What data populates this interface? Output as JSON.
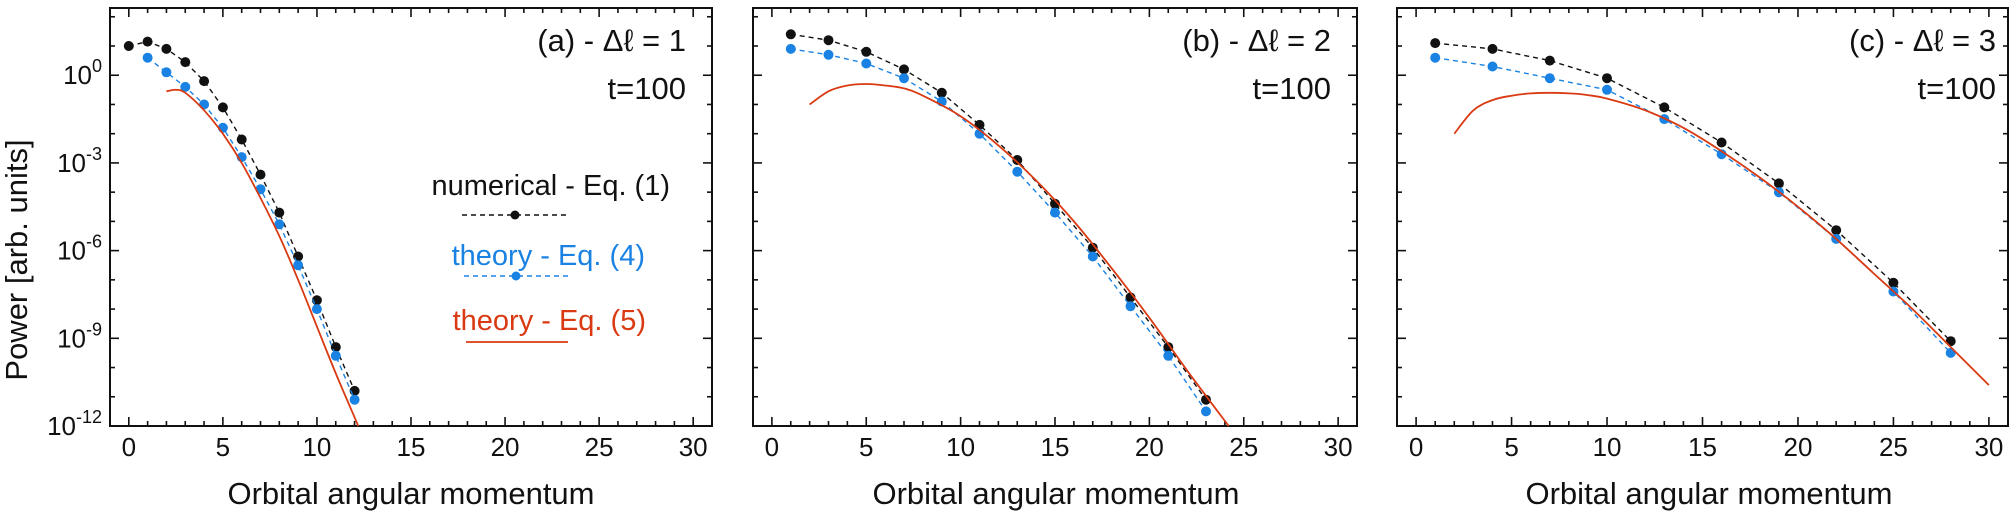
{
  "colors": {
    "numerical": "#111111",
    "theory_eq4": "#1a82e2",
    "theory_eq5": "#d93a12",
    "axis": "#111111"
  },
  "figure": {
    "ylabel": "Power [arb. units]"
  },
  "legend": {
    "numerical": "numerical - Eq. (1)",
    "theory_eq4": "theory - Eq. (4)",
    "theory_eq5": "theory - Eq. (5)"
  },
  "chart_data": [
    {
      "type": "line",
      "id": "a",
      "title": "(a) - Δℓ = 1",
      "annotation": "t=100",
      "xlabel": "Orbital angular momentum",
      "ylabel": "Power [arb. units]",
      "xlim": [
        -1,
        31
      ],
      "ylim_log10": [
        -12,
        2.3
      ],
      "yscale": "log",
      "xticks": [
        0,
        5,
        10,
        15,
        20,
        25,
        30
      ],
      "yticks_exponent": [
        0,
        -3,
        -6,
        -9,
        -12
      ],
      "series": [
        {
          "name": "numerical - Eq. (1)",
          "style": "dashed-markers",
          "x": [
            0,
            1,
            2,
            3,
            4,
            5,
            6,
            7,
            8,
            9,
            10,
            11,
            12
          ],
          "log10_y": [
            1.0,
            1.15,
            0.9,
            0.45,
            -0.2,
            -1.1,
            -2.2,
            -3.4,
            -4.7,
            -6.2,
            -7.7,
            -9.3,
            -10.8
          ]
        },
        {
          "name": "theory - Eq. (4)",
          "style": "dashed-markers",
          "x": [
            1,
            2,
            3,
            4,
            5,
            6,
            7,
            8,
            9,
            10,
            11,
            12
          ],
          "log10_y": [
            0.6,
            0.1,
            -0.4,
            -1.0,
            -1.8,
            -2.8,
            -3.9,
            -5.1,
            -6.5,
            -8.0,
            -9.6,
            -11.1
          ]
        },
        {
          "name": "theory - Eq. (5)",
          "style": "solid",
          "x": [
            2,
            2.5,
            3,
            4,
            5,
            6,
            7,
            8,
            9,
            10,
            11,
            12.2
          ],
          "log10_y": [
            -0.55,
            -0.5,
            -0.6,
            -1.2,
            -2.0,
            -3.0,
            -4.2,
            -5.5,
            -7.0,
            -8.6,
            -10.2,
            -12.0
          ]
        }
      ]
    },
    {
      "type": "line",
      "id": "b",
      "title": "(b) - Δℓ = 2",
      "annotation": "t=100",
      "xlabel": "Orbital angular momentum",
      "ylabel": "",
      "xlim": [
        -1,
        31
      ],
      "ylim_log10": [
        -12,
        2.3
      ],
      "yscale": "log",
      "xticks": [
        0,
        5,
        10,
        15,
        20,
        25,
        30
      ],
      "yticks_exponent": [
        0,
        -3,
        -6,
        -9,
        -12
      ],
      "series": [
        {
          "name": "numerical - Eq. (1)",
          "style": "dashed-markers",
          "x": [
            1,
            3,
            5,
            7,
            9,
            11,
            13,
            15,
            17,
            19,
            21,
            23
          ],
          "log10_y": [
            1.4,
            1.2,
            0.8,
            0.2,
            -0.6,
            -1.7,
            -2.9,
            -4.4,
            -5.9,
            -7.6,
            -9.3,
            -11.1
          ]
        },
        {
          "name": "theory - Eq. (4)",
          "style": "dashed-markers",
          "x": [
            1,
            3,
            5,
            7,
            9,
            11,
            13,
            15,
            17,
            19,
            21,
            23
          ],
          "log10_y": [
            0.9,
            0.7,
            0.4,
            -0.1,
            -0.9,
            -2.0,
            -3.3,
            -4.7,
            -6.2,
            -7.9,
            -9.6,
            -11.5
          ]
        },
        {
          "name": "theory - Eq. (5)",
          "style": "solid",
          "x": [
            2,
            3,
            4,
            5,
            6,
            7,
            8,
            10,
            12,
            14,
            16,
            18,
            20,
            22,
            24.2
          ],
          "log10_y": [
            -1.0,
            -0.55,
            -0.35,
            -0.3,
            -0.35,
            -0.45,
            -0.7,
            -1.4,
            -2.4,
            -3.6,
            -5.0,
            -6.6,
            -8.3,
            -10.1,
            -12.0
          ]
        }
      ]
    },
    {
      "type": "line",
      "id": "c",
      "title": "(c) - Δℓ = 3",
      "annotation": "t=100",
      "xlabel": "Orbital angular momentum",
      "ylabel": "",
      "xlim": [
        -1,
        31
      ],
      "ylim_log10": [
        -12,
        2.3
      ],
      "yscale": "log",
      "xticks": [
        0,
        5,
        10,
        15,
        20,
        25,
        30
      ],
      "yticks_exponent": [
        0,
        -3,
        -6,
        -9,
        -12
      ],
      "series": [
        {
          "name": "numerical - Eq. (1)",
          "style": "dashed-markers",
          "x": [
            1,
            4,
            7,
            10,
            13,
            16,
            19,
            22,
            25,
            28
          ],
          "log10_y": [
            1.1,
            0.9,
            0.5,
            -0.1,
            -1.1,
            -2.3,
            -3.7,
            -5.3,
            -7.1,
            -9.1
          ]
        },
        {
          "name": "theory - Eq. (4)",
          "style": "dashed-markers",
          "x": [
            1,
            4,
            7,
            10,
            13,
            16,
            19,
            22,
            25,
            28
          ],
          "log10_y": [
            0.6,
            0.3,
            -0.1,
            -0.5,
            -1.5,
            -2.7,
            -4.0,
            -5.6,
            -7.4,
            -9.5
          ]
        },
        {
          "name": "theory - Eq. (5)",
          "style": "solid",
          "x": [
            2,
            3,
            4,
            5,
            6,
            7,
            8,
            9,
            10,
            12,
            14,
            16,
            18,
            20,
            22,
            24,
            26,
            28,
            30
          ],
          "log10_y": [
            -2.0,
            -1.2,
            -0.85,
            -0.7,
            -0.62,
            -0.6,
            -0.62,
            -0.68,
            -0.8,
            -1.2,
            -1.8,
            -2.6,
            -3.5,
            -4.5,
            -5.6,
            -6.8,
            -8.0,
            -9.3,
            -10.6
          ]
        }
      ]
    }
  ]
}
